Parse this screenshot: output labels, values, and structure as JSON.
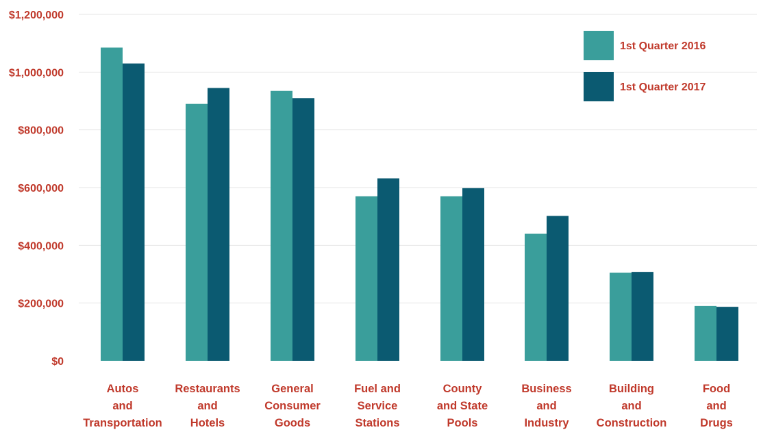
{
  "chart_data": {
    "type": "bar",
    "categories": [
      [
        "Autos",
        "and",
        "Transportation"
      ],
      [
        "Restaurants",
        "and",
        "Hotels"
      ],
      [
        "General",
        "Consumer",
        "Goods"
      ],
      [
        "Fuel and",
        "Service",
        "Stations"
      ],
      [
        "County",
        "and State",
        "Pools"
      ],
      [
        "Business",
        "and",
        "Industry"
      ],
      [
        "Building",
        "and",
        "Construction"
      ],
      [
        "Food",
        "and",
        "Drugs"
      ]
    ],
    "series": [
      {
        "name": "1st Quarter 2016",
        "color": "#3a9e9b",
        "values": [
          1085000,
          890000,
          935000,
          570000,
          570000,
          440000,
          305000,
          190000
        ]
      },
      {
        "name": "1st Quarter 2017",
        "color": "#0b5a71",
        "values": [
          1030000,
          945000,
          910000,
          632000,
          598000,
          502000,
          308000,
          187000
        ]
      }
    ],
    "ylim": [
      0,
      1200000
    ],
    "yticks": [
      "$0",
      "$200,000",
      "$400,000",
      "$600,000",
      "$800,000",
      "$1,000,000",
      "$1,200,000"
    ],
    "ytick_values": [
      0,
      200000,
      400000,
      600000,
      800000,
      1000000,
      1200000
    ],
    "grid": true,
    "legend_position": "top-right",
    "title": "",
    "xlabel": "",
    "ylabel": ""
  }
}
